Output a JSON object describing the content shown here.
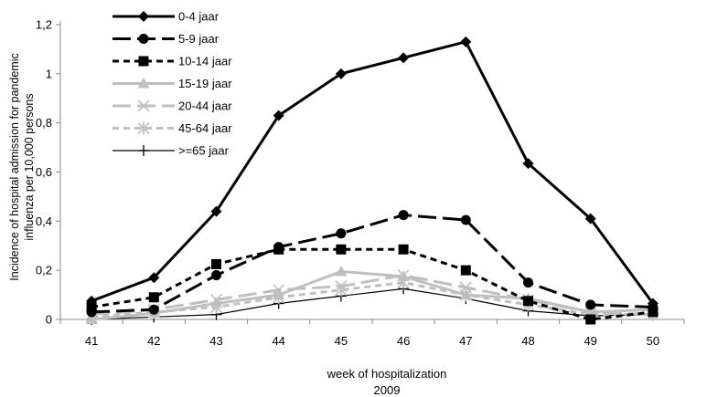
{
  "chart_data": {
    "type": "line",
    "title": "",
    "ylabel_lines": [
      "Incidence of hospital admission for pandemic",
      "influenza per 10,000 persons"
    ],
    "xlabel_lines": [
      "week of hospitalization",
      "2009"
    ],
    "x": [
      "41",
      "42",
      "43",
      "44",
      "45",
      "46",
      "47",
      "48",
      "49",
      "50"
    ],
    "ylim": [
      0,
      1.2
    ],
    "yticks": [
      "0",
      "0,2",
      "0,4",
      "0,6",
      "0,8",
      "1",
      "1,2"
    ],
    "grid": false,
    "legend_position": "top-left",
    "series": [
      {
        "name": "0-4 jaar",
        "color": "#000000",
        "dash": "solid",
        "marker": "diamond",
        "values": [
          0.075,
          0.17,
          0.44,
          0.83,
          1.0,
          1.065,
          1.13,
          0.635,
          0.41,
          0.065
        ]
      },
      {
        "name": "5-9 jaar",
        "color": "#000000",
        "dash": "longdash",
        "marker": "circle",
        "values": [
          0.03,
          0.04,
          0.18,
          0.295,
          0.35,
          0.425,
          0.405,
          0.15,
          0.06,
          0.05
        ]
      },
      {
        "name": "10-14 jaar",
        "color": "#000000",
        "dash": "shortdash",
        "marker": "square",
        "values": [
          0.05,
          0.09,
          0.225,
          0.285,
          0.285,
          0.285,
          0.2,
          0.075,
          0.0,
          0.03
        ]
      },
      {
        "name": "15-19 jaar",
        "color": "#bfbfbf",
        "dash": "solid",
        "marker": "triangle",
        "values": [
          0.0,
          0.025,
          0.065,
          0.1,
          0.195,
          0.175,
          0.1,
          0.085,
          0.03,
          0.04
        ]
      },
      {
        "name": "20-44 jaar",
        "color": "#bfbfbf",
        "dash": "longdash",
        "marker": "x",
        "values": [
          0.02,
          0.04,
          0.08,
          0.12,
          0.135,
          0.18,
          0.13,
          0.08,
          0.03,
          0.02
        ]
      },
      {
        "name": "45-64 jaar",
        "color": "#bfbfbf",
        "dash": "shortdash",
        "marker": "star",
        "values": [
          0.01,
          0.03,
          0.05,
          0.09,
          0.12,
          0.15,
          0.1,
          0.06,
          0.02,
          0.02
        ]
      },
      {
        "name": ">=65 jaar",
        "color": "#000000",
        "dash": "thin",
        "marker": "plus",
        "values": [
          0.0,
          0.01,
          0.02,
          0.065,
          0.095,
          0.125,
          0.085,
          0.035,
          0.015,
          0.02
        ]
      }
    ]
  }
}
